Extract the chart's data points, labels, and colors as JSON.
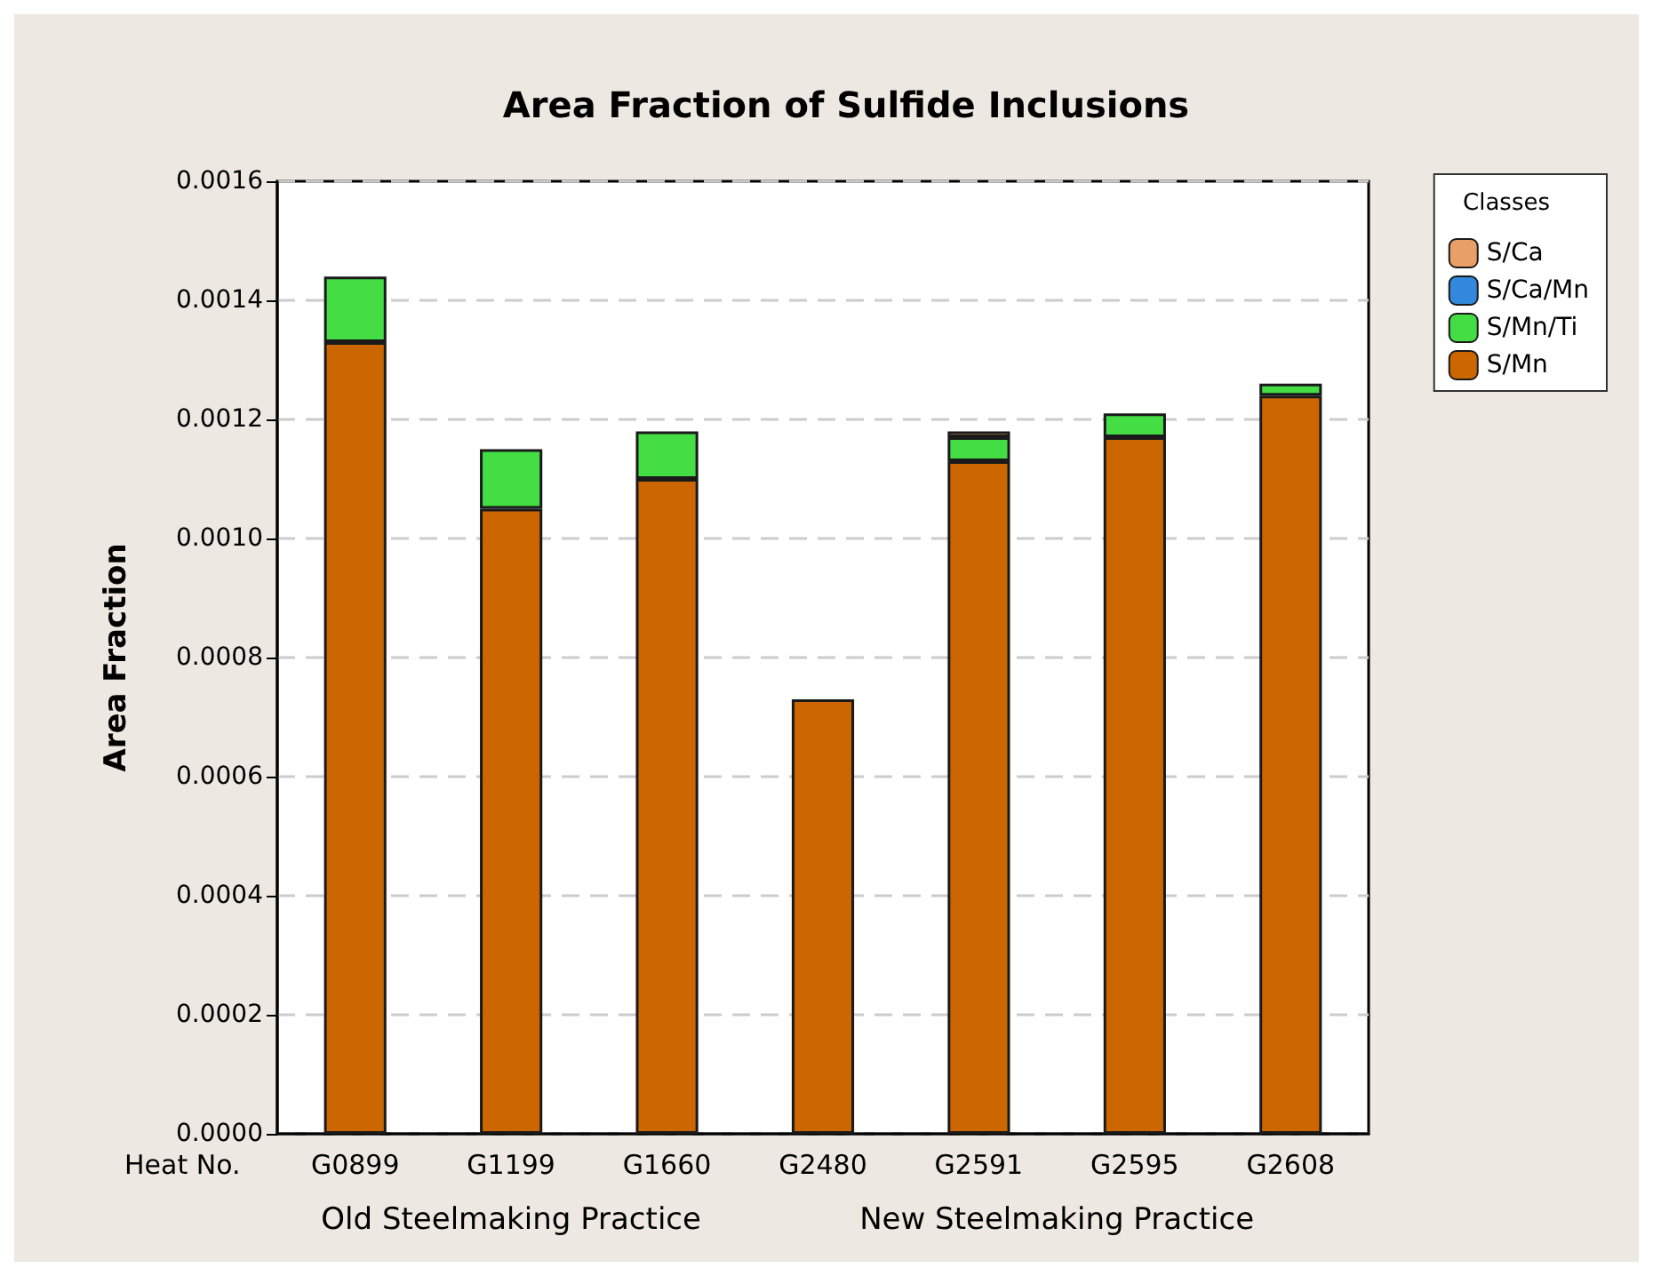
{
  "chart_data": {
    "type": "bar",
    "title": "Area Fraction of Sulfide Inclusions",
    "xlabel": "Heat No.",
    "ylabel": "Area Fraction",
    "legend_title": "Classes",
    "categories": [
      "G0899",
      "G1199",
      "G1660",
      "G2480",
      "G2591",
      "G2595",
      "G2608"
    ],
    "series": [
      {
        "name": "S/Mn",
        "color": "#cc6600",
        "values": [
          0.00133,
          0.00105,
          0.0011,
          0.00073,
          0.00113,
          0.00117,
          0.00124
        ]
      },
      {
        "name": "S/Mn/Ti",
        "color": "#44dd44",
        "values": [
          0.00011,
          0.0001,
          8e-05,
          null,
          4e-05,
          4e-05,
          2e-05
        ]
      },
      {
        "name": "S/Ca/Mn",
        "color": "#3388dd",
        "values": [
          null,
          null,
          null,
          null,
          null,
          null,
          null
        ]
      },
      {
        "name": "S/Ca",
        "color": "#e8a068",
        "values": [
          null,
          null,
          null,
          null,
          1e-05,
          null,
          null
        ]
      }
    ],
    "stacked": true,
    "ylim": [
      0,
      0.0016
    ],
    "yticks": [
      {
        "value": 0,
        "label": "0.0000"
      },
      {
        "value": 0.0002,
        "label": "0.0002"
      },
      {
        "value": 0.0004,
        "label": "0.0004"
      },
      {
        "value": 0.0006,
        "label": "0.0006"
      },
      {
        "value": 0.0008,
        "label": "0.0008"
      },
      {
        "value": 0.001,
        "label": "0.0010"
      },
      {
        "value": 0.0012,
        "label": "0.0012"
      },
      {
        "value": 0.0014,
        "label": "0.0014"
      },
      {
        "value": 0.0016,
        "label": "0.0016"
      }
    ],
    "grid": "y",
    "legend": "top right",
    "annotations": [
      "Old Steelmaking Practice",
      "New Steelmaking Practice"
    ]
  }
}
